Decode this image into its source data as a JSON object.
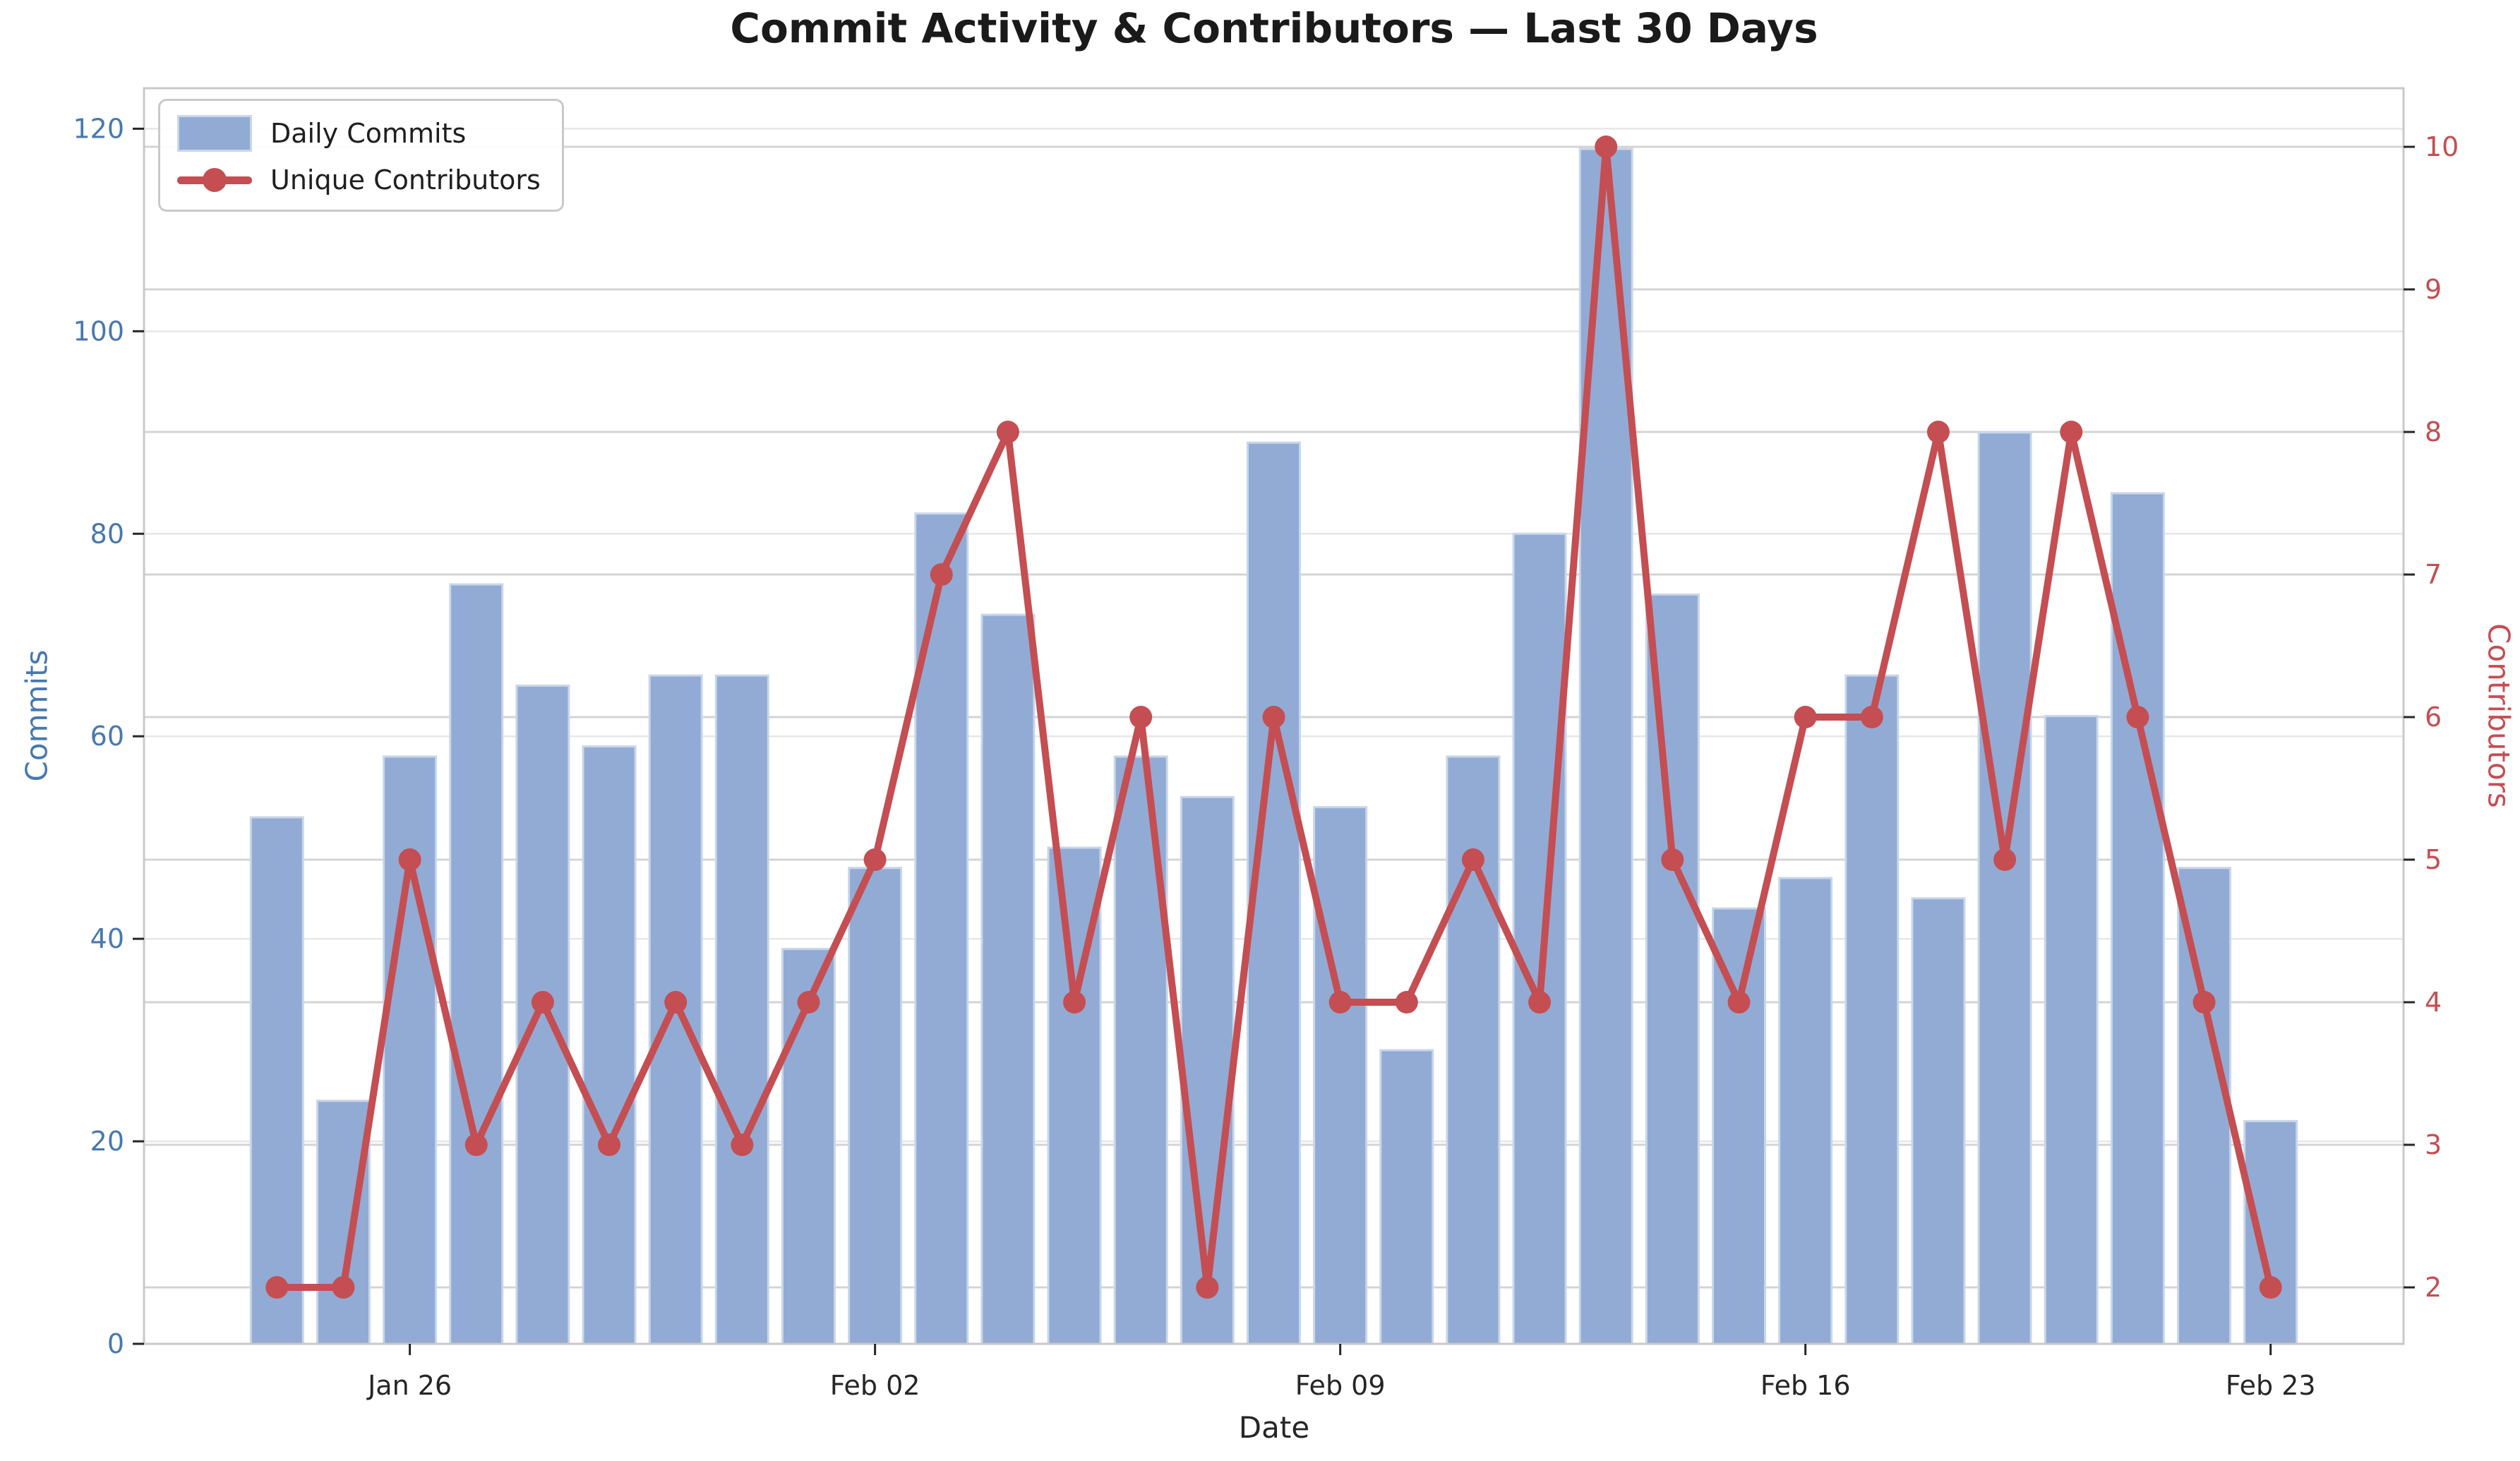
{
  "chart_data": {
    "type": "bar",
    "title": "Commit Activity & Contributors — Last 30 Days",
    "xlabel": "Date",
    "ylabel_left": "Commits",
    "ylabel_right": "Contributors",
    "categories": [
      "Jan 24",
      "Jan 25",
      "Jan 26",
      "Jan 27",
      "Jan 28",
      "Jan 29",
      "Jan 30",
      "Jan 31",
      "Feb 01",
      "Feb 02",
      "Feb 03",
      "Feb 04",
      "Feb 05",
      "Feb 06",
      "Feb 07",
      "Feb 08",
      "Feb 09",
      "Feb 10",
      "Feb 11",
      "Feb 12",
      "Feb 13",
      "Feb 14",
      "Feb 15",
      "Feb 16",
      "Feb 17",
      "Feb 18",
      "Feb 19",
      "Feb 20",
      "Feb 21",
      "Feb 22",
      "Feb 23"
    ],
    "series": [
      {
        "name": "Daily Commits",
        "type": "bar",
        "axis": "left",
        "values": [
          52,
          24,
          58,
          75,
          65,
          59,
          66,
          66,
          39,
          47,
          82,
          72,
          49,
          58,
          54,
          89,
          53,
          29,
          58,
          80,
          118,
          74,
          43,
          46,
          66,
          44,
          90,
          62,
          84,
          47,
          22
        ]
      },
      {
        "name": "Unique Contributors",
        "type": "line",
        "axis": "right",
        "values": [
          2,
          2,
          5,
          3,
          4,
          3,
          4,
          3,
          4,
          5,
          7,
          8,
          4,
          6,
          2,
          6,
          4,
          4,
          5,
          4,
          10,
          5,
          4,
          6,
          6,
          8,
          5,
          8,
          6,
          4,
          2
        ]
      }
    ],
    "x_tick_indices": [
      2,
      9,
      16,
      23,
      30
    ],
    "x_tick_labels": [
      "Jan 26",
      "Feb 02",
      "Feb 09",
      "Feb 16",
      "Feb 23"
    ],
    "yticks_left": [
      0,
      20,
      40,
      60,
      80,
      100,
      120
    ],
    "yticks_right": [
      2,
      3,
      4,
      5,
      6,
      7,
      8,
      9,
      10
    ],
    "ylim_left": [
      0,
      124
    ],
    "ylim_right": [
      1.604,
      10.411
    ],
    "xlim": [
      -2,
      32
    ],
    "grid": "both",
    "legend_position": "upper-left",
    "colors": {
      "bar_fill": "#92abd4",
      "bar_edge": "#c9d6ea",
      "line": "#c44e52",
      "left_axis_text": "#4878b0",
      "right_axis_text": "#c44e52",
      "title_text": "#1a1a1a",
      "tick_text": "#262626",
      "grid_left": "#e7e7e7",
      "grid_right": "#d4d4d4",
      "spine": "#c9c9c9"
    }
  }
}
